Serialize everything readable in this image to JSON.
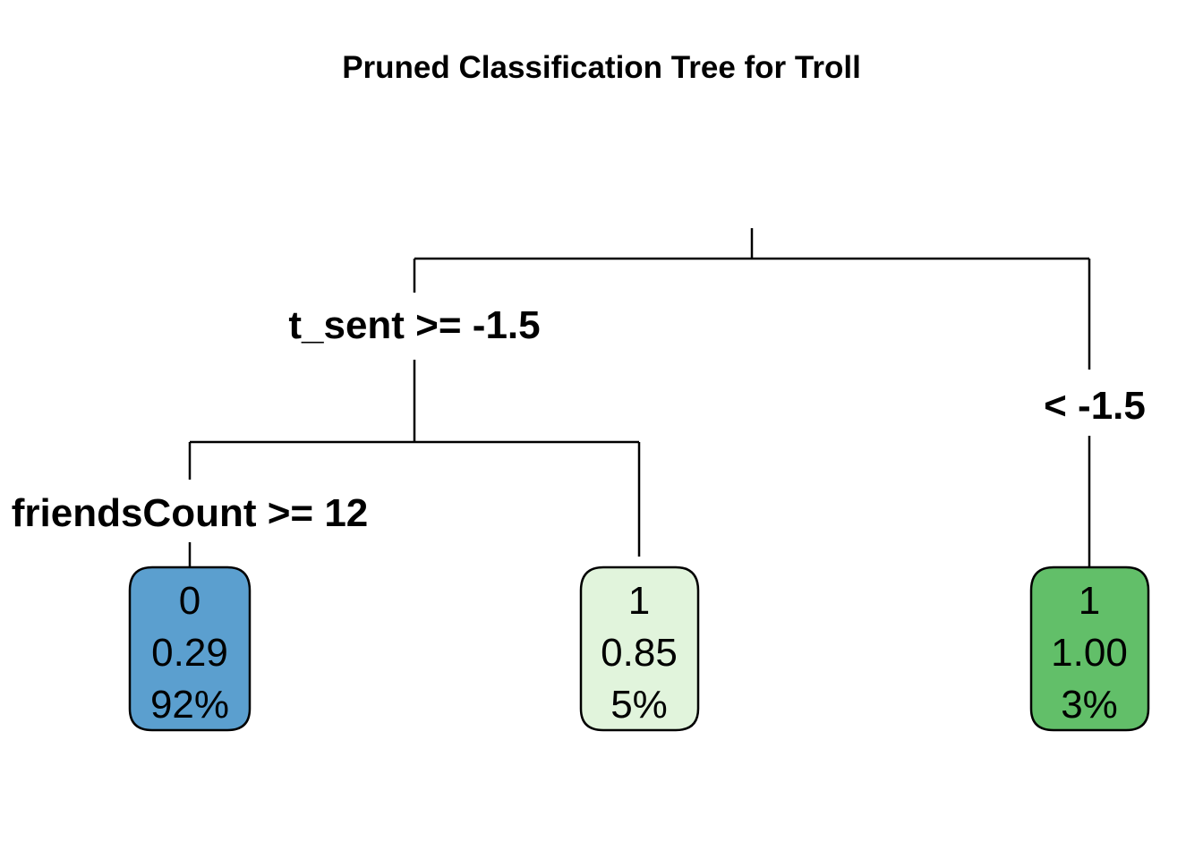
{
  "title": "Pruned Classification Tree for Troll",
  "tree": {
    "root_split": {
      "left_label": "t_sent >= -1.5",
      "right_label": "< -1.5"
    },
    "left_split": {
      "left_label": "friendsCount >= 12"
    },
    "leaves": [
      {
        "class": "0",
        "prob": "0.29",
        "pct": "92%",
        "color": "#5b9fcf"
      },
      {
        "class": "1",
        "prob": "0.85",
        "pct": "5%",
        "color": "#e1f4dc"
      },
      {
        "class": "1",
        "prob": "1.00",
        "pct": "3%",
        "color": "#62bf69"
      }
    ]
  }
}
